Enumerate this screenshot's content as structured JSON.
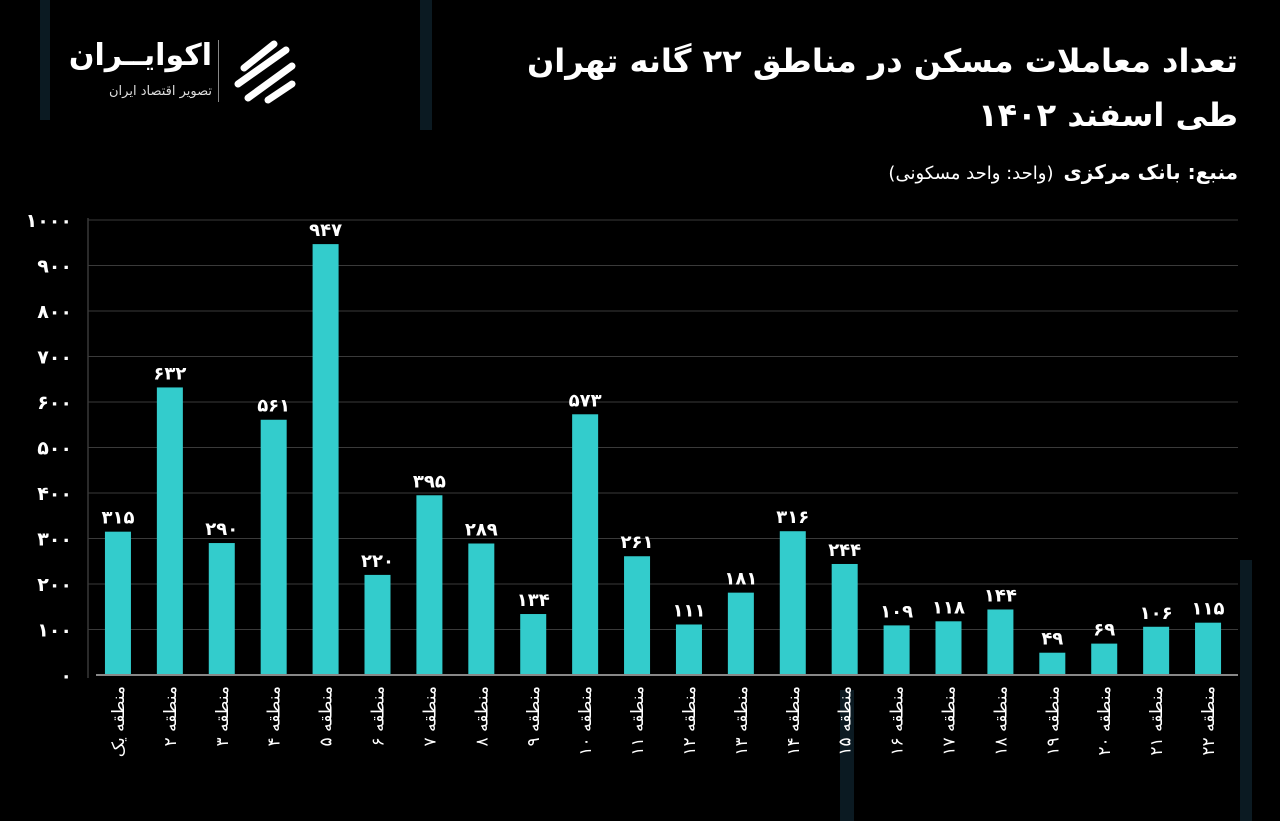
{
  "header": {
    "title_line1": "تعداد معاملات مسکن در مناطق ۲۲ گانه تهران",
    "title_line2": "طی اسفند ۱۴۰۲",
    "source": "منبع: بانک مرکزی",
    "unit": "(واحد: واحد مسکونی)"
  },
  "logo": {
    "name": "اکوایــران",
    "tagline": "تصویر اقتصاد ایران"
  },
  "colors": {
    "background": "#000000",
    "bar": "#33CCCC",
    "grid": "#3a3a3a",
    "text": "#ffffff"
  },
  "chart_data": {
    "type": "bar",
    "title": "تعداد معاملات مسکن در مناطق ۲۲ گانه تهران طی اسفند ۱۴۰۲",
    "xlabel": "",
    "ylabel": "",
    "ylim": [
      0,
      1000
    ],
    "yticks": [
      0,
      100,
      200,
      300,
      400,
      500,
      600,
      700,
      800,
      900,
      1000
    ],
    "ytick_labels": [
      "۰",
      "۱۰۰",
      "۲۰۰",
      "۳۰۰",
      "۴۰۰",
      "۵۰۰",
      "۶۰۰",
      "۷۰۰",
      "۸۰۰",
      "۹۰۰",
      "۱۰۰۰"
    ],
    "grid": true,
    "categories": [
      "منطقه یک",
      "منطقه ۲",
      "منطقه ۳",
      "منطقه ۴",
      "منطقه ۵",
      "منطقه ۶",
      "منطقه ۷",
      "منطقه ۸",
      "منطقه ۹",
      "منطقه ۱۰",
      "منطقه ۱۱",
      "منطقه ۱۲",
      "منطقه ۱۳",
      "منطقه ۱۴",
      "منطقه ۱۵",
      "منطقه ۱۶",
      "منطقه ۱۷",
      "منطقه ۱۸",
      "منطقه ۱۹",
      "منطقه ۲۰",
      "منطقه ۲۱",
      "منطقه ۲۲"
    ],
    "values": [
      315,
      632,
      290,
      561,
      947,
      220,
      395,
      289,
      134,
      573,
      261,
      111,
      181,
      316,
      244,
      109,
      118,
      144,
      49,
      69,
      106,
      115
    ],
    "data_labels": [
      "۳۱۵",
      "۶۳۲",
      "۲۹۰",
      "۵۶۱",
      "۹۴۷",
      "۲۲۰",
      "۳۹۵",
      "۲۸۹",
      "۱۳۴",
      "۵۷۳",
      "۲۶۱",
      "۱۱۱",
      "۱۸۱",
      "۳۱۶",
      "۲۴۴",
      "۱۰۹",
      "۱۱۸",
      "۱۴۴",
      "۴۹",
      "۶۹",
      "۱۰۶",
      "۱۱۵"
    ]
  }
}
